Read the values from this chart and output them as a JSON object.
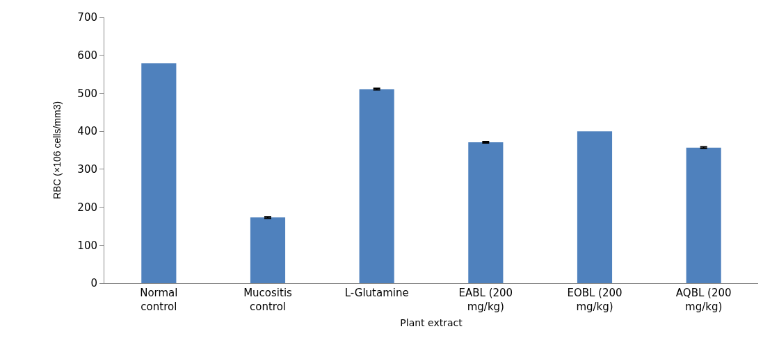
{
  "chart_data": {
    "type": "bar",
    "xlabel": "Plant extract",
    "ylabel": "RBC (×106 cells/mm3)",
    "categories": [
      "Normal control",
      "Mucositis control",
      "L-Glutamine",
      "EABL (200 mg/kg)",
      "EOBL (200 mg/kg)",
      "AQBL (200 mg/kg)"
    ],
    "values": [
      579,
      173,
      511,
      371,
      400,
      357
    ],
    "errors": [
      null,
      2,
      2,
      2,
      null,
      2
    ],
    "color": "#4f81bd",
    "ylim": [
      0,
      700
    ],
    "yticks": [
      0,
      100,
      200,
      300,
      400,
      500,
      600,
      700
    ],
    "grid": false
  }
}
